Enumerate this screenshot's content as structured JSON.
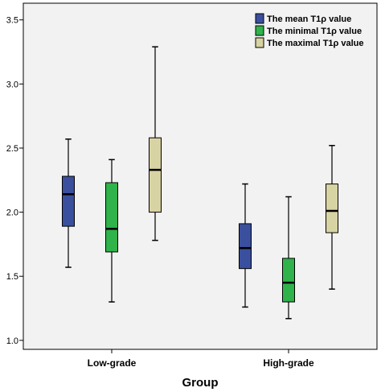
{
  "chart_data": {
    "type": "boxplot",
    "xlabel": "Group",
    "ylabel": "",
    "ylim": [
      0.93,
      3.63
    ],
    "yticks": [
      1.0,
      1.5,
      2.0,
      2.5,
      3.0,
      3.5
    ],
    "ytick_labels": [
      "1.0",
      "1.5",
      "2.0",
      "2.5",
      "3.0",
      "3.5"
    ],
    "categories": [
      "Low-grade",
      "High-grade"
    ],
    "legend_position": "top-right",
    "plot_background": "#f2f2f2",
    "series": [
      {
        "name": "The mean T1ρ value",
        "color": "#3a4f9e",
        "boxes": [
          {
            "min": 1.57,
            "q1": 1.89,
            "median": 2.14,
            "q3": 2.28,
            "max": 2.57
          },
          {
            "min": 1.26,
            "q1": 1.56,
            "median": 1.72,
            "q3": 1.91,
            "max": 2.22
          }
        ]
      },
      {
        "name": "The minimal T1ρ value",
        "color": "#2fb34a",
        "boxes": [
          {
            "min": 1.3,
            "q1": 1.69,
            "median": 1.87,
            "q3": 2.23,
            "max": 2.41
          },
          {
            "min": 1.17,
            "q1": 1.3,
            "median": 1.45,
            "q3": 1.64,
            "max": 2.12
          }
        ]
      },
      {
        "name": "The maximal T1ρ value",
        "color": "#d8d3a3",
        "boxes": [
          {
            "min": 1.78,
            "q1": 2.0,
            "median": 2.33,
            "q3": 2.58,
            "max": 3.29
          },
          {
            "min": 1.4,
            "q1": 1.84,
            "median": 2.01,
            "q3": 2.22,
            "max": 2.52
          }
        ]
      }
    ]
  }
}
